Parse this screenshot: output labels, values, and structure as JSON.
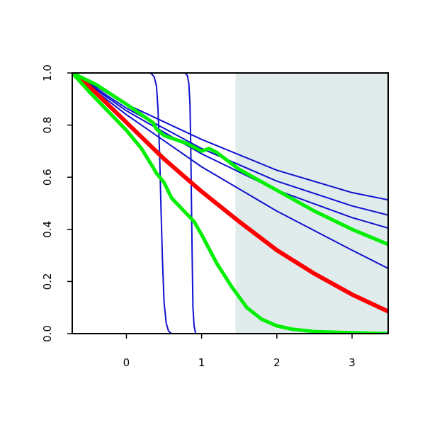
{
  "chart_data": {
    "type": "line",
    "title": "",
    "xlabel": "",
    "ylabel": "",
    "xlim": [
      -0.72,
      3.48
    ],
    "ylim": [
      0,
      1
    ],
    "grid": false,
    "x_ticks": [
      {
        "value": 0,
        "label": "0"
      },
      {
        "value": 1,
        "label": "1"
      },
      {
        "value": 2,
        "label": "2"
      },
      {
        "value": 3,
        "label": "3"
      }
    ],
    "y_ticks": [
      {
        "value": 0,
        "label": "0.0"
      },
      {
        "value": 0.2,
        "label": "0.2"
      },
      {
        "value": 0.4,
        "label": "0.4"
      },
      {
        "value": 0.6,
        "label": "0.6"
      },
      {
        "value": 0.8,
        "label": "0.8"
      },
      {
        "value": 1.0,
        "label": "1.0"
      }
    ],
    "shaded_region": {
      "x": [
        1.45,
        3.48
      ],
      "y": [
        0,
        1
      ],
      "color": "#e0ecec"
    },
    "series": [
      {
        "color": "#1010d0",
        "width": 2,
        "x": [
          -0.72,
          0.3,
          0.33,
          0.37,
          0.4,
          0.42,
          0.44,
          0.46,
          0.48,
          0.5,
          0.53,
          0.56,
          0.6,
          3.48
        ],
        "y": [
          1.0,
          1.0,
          0.998,
          0.985,
          0.95,
          0.86,
          0.7,
          0.48,
          0.28,
          0.12,
          0.04,
          0.01,
          0.0,
          0.0
        ]
      },
      {
        "color": "#1010d0",
        "width": 2,
        "x": [
          -0.72,
          0.78,
          0.81,
          0.83,
          0.845,
          0.855,
          0.865,
          0.875,
          0.885,
          0.9,
          0.92,
          3.48
        ],
        "y": [
          1.0,
          1.0,
          0.99,
          0.96,
          0.88,
          0.72,
          0.5,
          0.28,
          0.1,
          0.03,
          0.0,
          0.0
        ]
      },
      {
        "color": "#1010d0",
        "width": 2,
        "x": [
          -0.72,
          0.0,
          1.0,
          2.0,
          3.0,
          3.48
        ],
        "y": [
          1.0,
          0.88,
          0.745,
          0.627,
          0.541,
          0.513
        ]
      },
      {
        "color": "#1010d0",
        "width": 2,
        "x": [
          -0.72,
          0.0,
          1.0,
          2.0,
          3.0,
          3.48
        ],
        "y": [
          1.0,
          0.865,
          0.71,
          0.585,
          0.49,
          0.455
        ]
      },
      {
        "color": "#1010d0",
        "width": 2,
        "x": [
          -0.72,
          0.0,
          1.0,
          2.0,
          3.0,
          3.48
        ],
        "y": [
          1.0,
          0.855,
          0.69,
          0.55,
          0.445,
          0.405
        ]
      },
      {
        "color": "#1010d0",
        "width": 2,
        "x": [
          -0.72,
          0.0,
          1.0,
          2.0,
          3.0,
          3.48
        ],
        "y": [
          1.0,
          0.84,
          0.64,
          0.47,
          0.32,
          0.25
        ]
      },
      {
        "color": "#ff0000",
        "width": 6,
        "x": [
          -0.72,
          -0.5,
          0.0,
          0.5,
          1.0,
          1.5,
          2.0,
          2.5,
          3.0,
          3.48
        ],
        "y": [
          1.0,
          0.95,
          0.81,
          0.67,
          0.545,
          0.43,
          0.32,
          0.23,
          0.15,
          0.085
        ]
      },
      {
        "color": "#00ee00",
        "width": 5,
        "x": [
          -0.72,
          -0.4,
          0.0,
          0.35,
          0.4,
          0.5,
          0.8,
          1.0,
          1.1,
          1.2,
          1.5,
          2.0,
          2.5,
          3.0,
          3.48
        ],
        "y": [
          1.0,
          0.955,
          0.88,
          0.81,
          0.785,
          0.76,
          0.73,
          0.7,
          0.71,
          0.695,
          0.63,
          0.55,
          0.47,
          0.4,
          0.342
        ]
      },
      {
        "color": "#00ee00",
        "width": 5,
        "x": [
          -0.72,
          -0.5,
          -0.2,
          0.0,
          0.2,
          0.35,
          0.4,
          0.5,
          0.6,
          0.8,
          0.9,
          1.0,
          1.2,
          1.4,
          1.6,
          1.8,
          2.0,
          2.2,
          2.5,
          3.0,
          3.48
        ],
        "y": [
          1.0,
          0.93,
          0.84,
          0.78,
          0.71,
          0.64,
          0.615,
          0.58,
          0.52,
          0.46,
          0.43,
          0.38,
          0.27,
          0.18,
          0.1,
          0.055,
          0.03,
          0.017,
          0.008,
          0.003,
          0.0
        ]
      }
    ]
  }
}
